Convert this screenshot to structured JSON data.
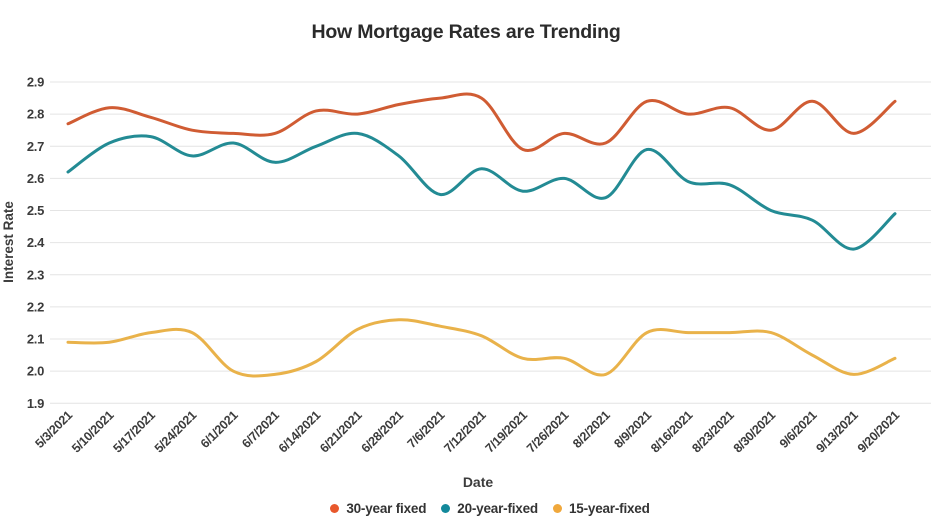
{
  "chart_data": {
    "type": "line",
    "title": "How Mortgage Rates are Trending",
    "xlabel": "Date",
    "ylabel": "Interest Rate",
    "x": [
      "5/3/2021",
      "5/10/2021",
      "5/17/2021",
      "5/24/2021",
      "6/1/2021",
      "6/7/2021",
      "6/14/2021",
      "6/21/2021",
      "6/28/2021",
      "7/6/2021",
      "7/12/2021",
      "7/19/2021",
      "7/26/2021",
      "8/2/2021",
      "8/9/2021",
      "8/16/2021",
      "8/23/2021",
      "8/30/2021",
      "9/6/2021",
      "9/13/2021",
      "9/20/2021"
    ],
    "series": [
      {
        "name": "30-year fixed",
        "color": "#d05c33",
        "dot_color": "#e8582c",
        "values": [
          2.77,
          2.82,
          2.79,
          2.75,
          2.74,
          2.74,
          2.81,
          2.8,
          2.83,
          2.85,
          2.85,
          2.69,
          2.74,
          2.71,
          2.84,
          2.8,
          2.82,
          2.75,
          2.84,
          2.74,
          2.84
        ]
      },
      {
        "name": "20-year-fixed",
        "color": "#238b94",
        "dot_color": "#13899b",
        "values": [
          2.62,
          2.71,
          2.73,
          2.67,
          2.71,
          2.65,
          2.7,
          2.74,
          2.67,
          2.55,
          2.63,
          2.56,
          2.6,
          2.54,
          2.69,
          2.59,
          2.58,
          2.5,
          2.47,
          2.38,
          2.49
        ]
      },
      {
        "name": "15-year-fixed",
        "color": "#e9b24a",
        "dot_color": "#f0a83c",
        "values": [
          2.09,
          2.09,
          2.12,
          2.12,
          2.0,
          1.99,
          2.03,
          2.13,
          2.16,
          2.14,
          2.11,
          2.04,
          2.04,
          1.99,
          2.12,
          2.12,
          2.12,
          2.12,
          2.05,
          1.99,
          2.04
        ]
      }
    ],
    "ylim": [
      1.9,
      2.9
    ],
    "yticks": [
      "2.9",
      "2.8",
      "2.7",
      "2.6",
      "2.5",
      "2.4",
      "2.3",
      "2.2",
      "2.1",
      "2.0",
      "1.9"
    ],
    "grid": "horizontal",
    "legend_position": "bottom",
    "colors": {
      "background": "#ffffff",
      "grid": "#e4e4e4",
      "axis_text": "#3c3c3c",
      "title_text": "#2b2b2b",
      "legend_text": "#333333"
    }
  }
}
